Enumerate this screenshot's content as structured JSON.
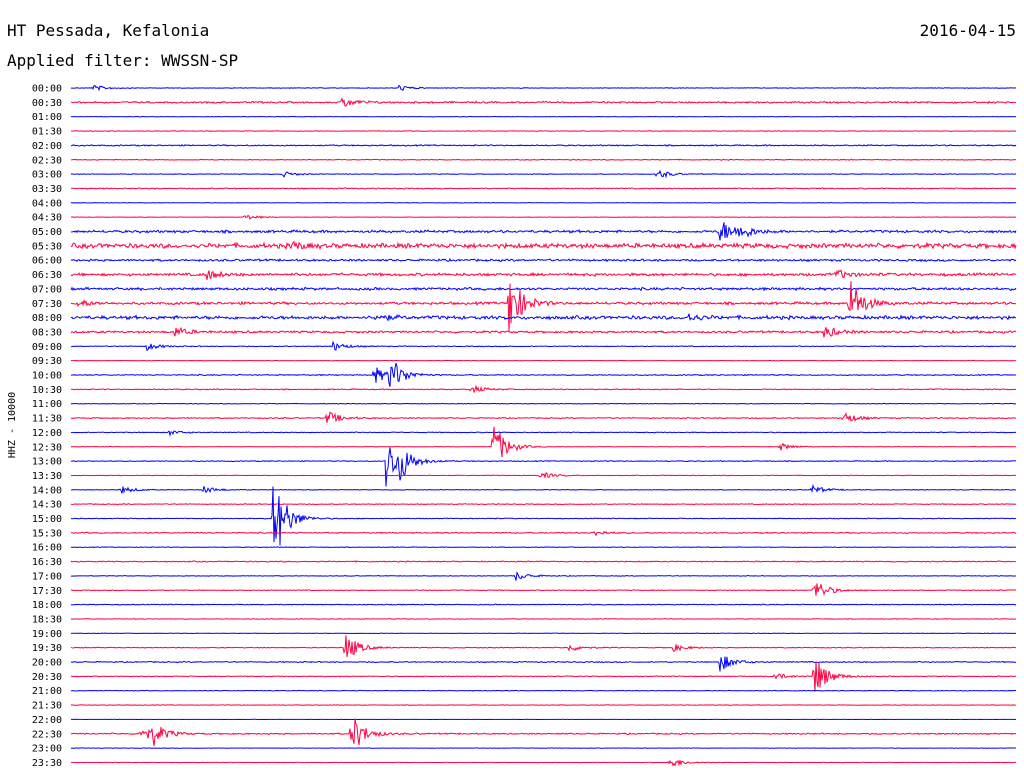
{
  "header": {
    "station": "HT Pessada, Kefalonia",
    "date": "2016-04-15",
    "filter": "Applied filter: WWSSN-SP"
  },
  "colors": {
    "even_trace": "#0000ff",
    "odd_trace": "#ff0040",
    "background": "#ffffff",
    "text": "#000000"
  },
  "chart_data": {
    "type": "line",
    "subtype": "helicorder",
    "ylabel": "HHZ - 10000",
    "row_labels": [
      "00:00",
      "00:30",
      "01:00",
      "01:30",
      "02:00",
      "02:30",
      "03:00",
      "03:30",
      "04:00",
      "04:30",
      "05:00",
      "05:30",
      "06:00",
      "06:30",
      "07:00",
      "07:30",
      "08:00",
      "08:30",
      "09:00",
      "09:30",
      "10:00",
      "10:30",
      "11:00",
      "11:30",
      "12:00",
      "12:30",
      "13:00",
      "13:30",
      "14:00",
      "14:30",
      "15:00",
      "15:30",
      "16:00",
      "16:30",
      "17:00",
      "17:30",
      "18:00",
      "18:30",
      "19:00",
      "19:30",
      "20:00",
      "20:30",
      "21:00",
      "21:30",
      "22:00",
      "22:30",
      "23:00",
      "23:30"
    ],
    "minutes_per_row": 30,
    "trace_colors_alternate": [
      "blue",
      "red"
    ],
    "noise_level": [
      0.3,
      0.8,
      0.2,
      0.3,
      0.6,
      0.4,
      0.3,
      0.5,
      0.2,
      0.2,
      1.2,
      2.2,
      1.0,
      1.3,
      1.2,
      1.2,
      1.6,
      1.0,
      0.4,
      0.2,
      0.5,
      0.5,
      0.3,
      0.5,
      0.4,
      0.2,
      0.4,
      0.3,
      0.3,
      0.4,
      0.4,
      0.5,
      0.3,
      0.5,
      0.3,
      0.4,
      0.4,
      0.3,
      0.2,
      0.4,
      0.5,
      0.4,
      0.3,
      0.3,
      0.1,
      0.6,
      0.2,
      0.2
    ],
    "events": [
      {
        "row": 0,
        "minute": 0.7,
        "amp": 3
      },
      {
        "row": 0,
        "minute": 10.4,
        "amp": 3
      },
      {
        "row": 1,
        "minute": 8.6,
        "amp": 6
      },
      {
        "row": 6,
        "minute": 18.6,
        "amp": 5
      },
      {
        "row": 6,
        "minute": 6.7,
        "amp": 3
      },
      {
        "row": 9,
        "minute": 5.5,
        "amp": 3
      },
      {
        "row": 10,
        "minute": 20.6,
        "amp": 13
      },
      {
        "row": 10,
        "minute": 21.2,
        "amp": 7
      },
      {
        "row": 11,
        "minute": 7.0,
        "amp": 4
      },
      {
        "row": 13,
        "minute": 4.3,
        "amp": 5
      },
      {
        "row": 13,
        "minute": 24.3,
        "amp": 5
      },
      {
        "row": 15,
        "minute": 13.9,
        "amp": 34
      },
      {
        "row": 15,
        "minute": 24.7,
        "amp": 28
      },
      {
        "row": 15,
        "minute": 0.2,
        "amp": 4
      },
      {
        "row": 16,
        "minute": 9.7,
        "amp": 4
      },
      {
        "row": 16,
        "minute": 19.6,
        "amp": 4
      },
      {
        "row": 17,
        "minute": 3.3,
        "amp": 5
      },
      {
        "row": 17,
        "minute": 23.9,
        "amp": 7
      },
      {
        "row": 18,
        "minute": 2.4,
        "amp": 4
      },
      {
        "row": 18,
        "minute": 8.3,
        "amp": 5
      },
      {
        "row": 20,
        "minute": 9.6,
        "amp": 10
      },
      {
        "row": 20,
        "minute": 10.1,
        "amp": 20
      },
      {
        "row": 21,
        "minute": 12.7,
        "amp": 4
      },
      {
        "row": 23,
        "minute": 8.1,
        "amp": 8
      },
      {
        "row": 23,
        "minute": 24.5,
        "amp": 7
      },
      {
        "row": 24,
        "minute": 3.1,
        "amp": 3
      },
      {
        "row": 25,
        "minute": 13.4,
        "amp": 26
      },
      {
        "row": 25,
        "minute": 22.5,
        "amp": 4
      },
      {
        "row": 26,
        "minute": 10.0,
        "amp": 26
      },
      {
        "row": 26,
        "minute": 10.4,
        "amp": 16
      },
      {
        "row": 27,
        "minute": 14.9,
        "amp": 4
      },
      {
        "row": 28,
        "minute": 1.6,
        "amp": 4
      },
      {
        "row": 28,
        "minute": 4.2,
        "amp": 4
      },
      {
        "row": 28,
        "minute": 23.5,
        "amp": 5
      },
      {
        "row": 30,
        "minute": 6.4,
        "amp": 52
      },
      {
        "row": 31,
        "minute": 16.6,
        "amp": 3
      },
      {
        "row": 34,
        "minute": 14.1,
        "amp": 5
      },
      {
        "row": 35,
        "minute": 23.6,
        "amp": 12
      },
      {
        "row": 39,
        "minute": 8.7,
        "amp": 16
      },
      {
        "row": 39,
        "minute": 15.8,
        "amp": 4
      },
      {
        "row": 39,
        "minute": 19.1,
        "amp": 4
      },
      {
        "row": 40,
        "minute": 20.6,
        "amp": 10
      },
      {
        "row": 41,
        "minute": 23.6,
        "amp": 22
      },
      {
        "row": 41,
        "minute": 22.3,
        "amp": 4
      },
      {
        "row": 45,
        "minute": 2.2,
        "amp": 10
      },
      {
        "row": 45,
        "minute": 2.6,
        "amp": 10
      },
      {
        "row": 45,
        "minute": 8.9,
        "amp": 22
      },
      {
        "row": 47,
        "minute": 19.0,
        "amp": 6
      }
    ]
  }
}
